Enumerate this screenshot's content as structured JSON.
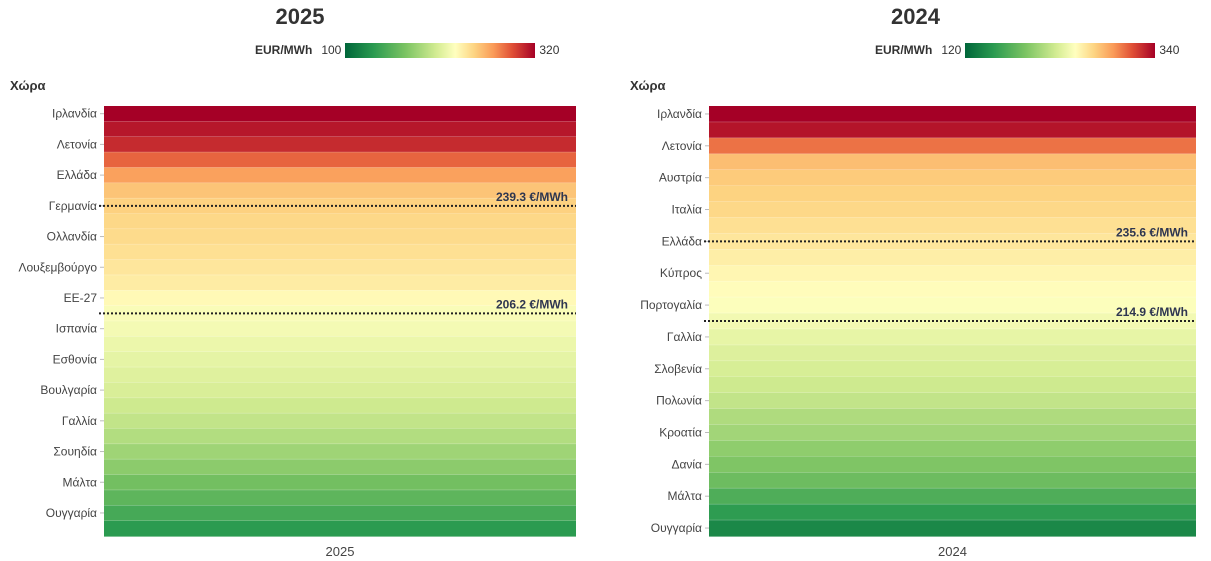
{
  "charts": [
    {
      "id": "2025",
      "title": "2025",
      "legend": {
        "unit": "EUR/MWh",
        "min": "100",
        "max": "320"
      },
      "y_title": "Χώρα",
      "x_label": "2025"
    },
    {
      "id": "2024",
      "title": "2024",
      "legend": {
        "unit": "EUR/MWh",
        "min": "120",
        "max": "340"
      },
      "y_title": "Χώρα",
      "x_label": "2024"
    }
  ],
  "chart_data": [
    {
      "type": "heatmap",
      "title": "2025",
      "xlabel": "2025",
      "ylabel": "Χώρα",
      "color_scale": {
        "unit": "EUR/MWh",
        "min": 100,
        "max": 320,
        "colors": [
          "#00663a",
          "#2a9a50",
          "#7cc463",
          "#d3ec92",
          "#ffffbf",
          "#fdd482",
          "#fa9b58",
          "#e04f36",
          "#a50026"
        ]
      },
      "rows": 28,
      "tick_labels": [
        {
          "row": 1,
          "label": "Ιρλανδία"
        },
        {
          "row": 3,
          "label": "Λετονία"
        },
        {
          "row": 5,
          "label": "Ελλάδα"
        },
        {
          "row": 7,
          "label": "Γερμανία"
        },
        {
          "row": 9,
          "label": "Ολλανδία"
        },
        {
          "row": 11,
          "label": "Λουξεμβούργο"
        },
        {
          "row": 13,
          "label": "ΕΕ-27"
        },
        {
          "row": 15,
          "label": "Ισπανία"
        },
        {
          "row": 17,
          "label": "Εσθονία"
        },
        {
          "row": 19,
          "label": "Βουλγαρία"
        },
        {
          "row": 21,
          "label": "Γαλλία"
        },
        {
          "row": 23,
          "label": "Σουηδία"
        },
        {
          "row": 25,
          "label": "Μάλτα"
        },
        {
          "row": 27,
          "label": "Ουγγαρία"
        }
      ],
      "values": [
        320,
        312,
        305,
        285,
        262,
        245,
        239,
        235,
        233,
        230,
        226,
        222,
        214,
        206,
        203,
        198,
        194,
        190,
        186,
        181,
        177,
        172,
        166,
        160,
        152,
        145,
        137,
        128
      ],
      "reference_lines": [
        {
          "row": 6.5,
          "label": "239.3 €/MWh",
          "value": 239.3
        },
        {
          "row": 13.5,
          "label": "206.2 €/MWh",
          "value": 206.2
        }
      ]
    },
    {
      "type": "heatmap",
      "title": "2024",
      "xlabel": "2024",
      "ylabel": "Χώρα",
      "color_scale": {
        "unit": "EUR/MWh",
        "min": 120,
        "max": 340,
        "colors": [
          "#00663a",
          "#2a9a50",
          "#7cc463",
          "#d3ec92",
          "#ffffbf",
          "#fdd482",
          "#fa9b58",
          "#e04f36",
          "#a50026"
        ]
      },
      "rows": 27,
      "tick_labels": [
        {
          "row": 1,
          "label": "Ιρλανδία"
        },
        {
          "row": 3,
          "label": "Λετονία"
        },
        {
          "row": 5,
          "label": "Αυστρία"
        },
        {
          "row": 7,
          "label": "Ιταλία"
        },
        {
          "row": 9,
          "label": "Ελλάδα"
        },
        {
          "row": 11,
          "label": "Κύπρος"
        },
        {
          "row": 13,
          "label": "Πορτογαλία"
        },
        {
          "row": 15,
          "label": "Γαλλία"
        },
        {
          "row": 17,
          "label": "Σλοβενία"
        },
        {
          "row": 19,
          "label": "Πολωνία"
        },
        {
          "row": 21,
          "label": "Κροατία"
        },
        {
          "row": 23,
          "label": "Δανία"
        },
        {
          "row": 25,
          "label": "Μάλτα"
        },
        {
          "row": 27,
          "label": "Ουγγαρία"
        }
      ],
      "values": [
        340,
        333,
        300,
        268,
        262,
        258,
        255,
        250,
        246,
        241,
        236,
        232,
        228,
        222,
        215,
        209,
        205,
        201,
        197,
        191,
        187,
        181,
        176,
        170,
        160,
        149,
        138
      ],
      "reference_lines": [
        {
          "row": 8.5,
          "label": "235.6 €/MWh",
          "value": 235.6
        },
        {
          "row": 13.5,
          "label": "214.9 €/MWh",
          "value": 214.9
        }
      ]
    }
  ]
}
